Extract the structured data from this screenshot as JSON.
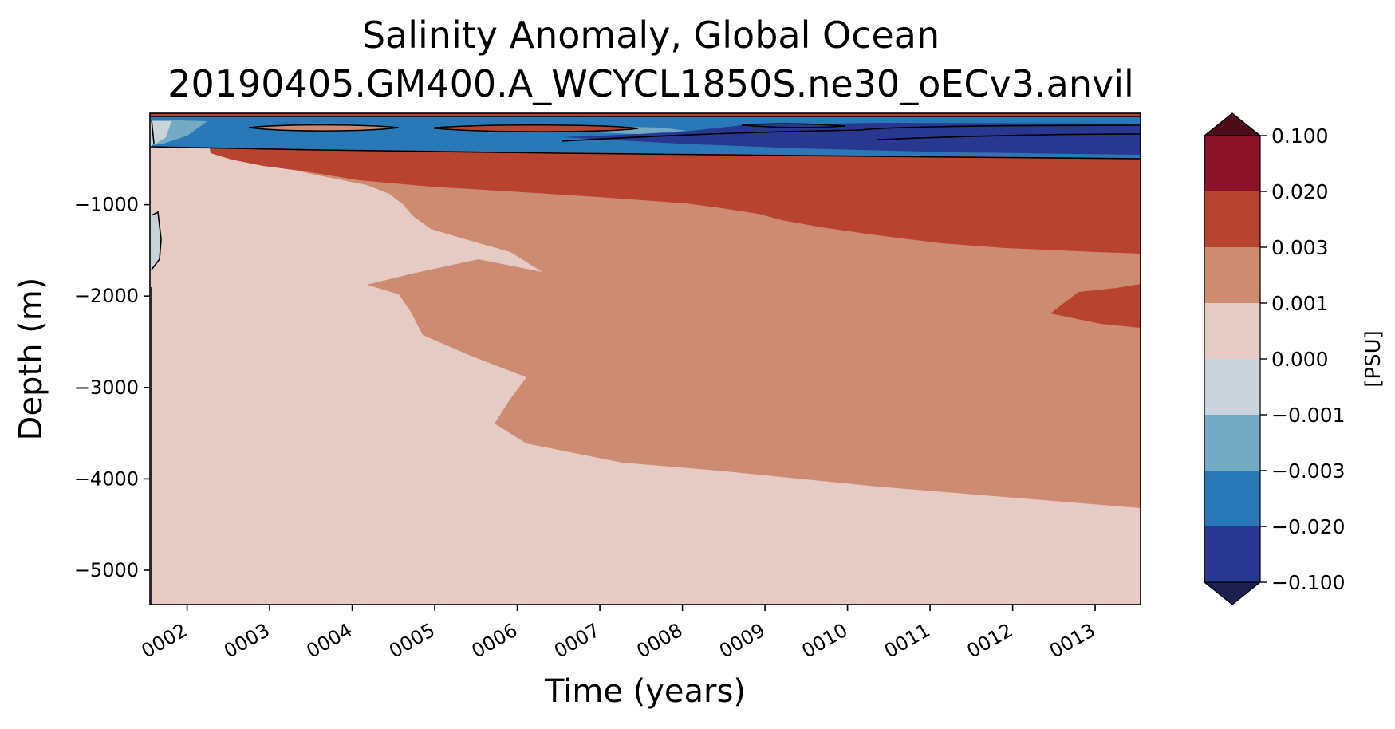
{
  "chart_data": {
    "type": "heatmap",
    "subtype": "filled-contour (Hovmoller)",
    "title": "Salinity Anomaly, Global Ocean",
    "subtitle": "20190405.GM400.A_WCYCL1850S.ne30_oECv3.anvil",
    "xlabel": "Time (years)",
    "ylabel": "Depth (m)",
    "x_ticks": [
      "0002",
      "0003",
      "0004",
      "0005",
      "0006",
      "0007",
      "0008",
      "0009",
      "0010",
      "0011",
      "0012",
      "0013"
    ],
    "xlim": [
      1.55,
      13.55
    ],
    "y_ticks": [
      -1000,
      -2000,
      -3000,
      -4000,
      -5000
    ],
    "y_tick_labels": [
      "−1000",
      "−2000",
      "−3000",
      "−4000",
      "−5000"
    ],
    "ylim": [
      -5375,
      0
    ],
    "grid": false,
    "colorbar": {
      "label": "[PSU]",
      "position": "right",
      "extend": "both",
      "levels": [
        -0.1,
        -0.02,
        -0.003,
        -0.001,
        0.0,
        0.001,
        0.003,
        0.02,
        0.1
      ],
      "tick_labels": [
        "−0.100",
        "−0.020",
        "−0.003",
        "−0.001",
        "0.000",
        "0.001",
        "0.003",
        "0.020",
        "0.100"
      ],
      "colors": [
        "#28378f",
        "#2979b9",
        "#75aac4",
        "#c9d4da",
        "#e5cbc3",
        "#cd8b72",
        "#b84430",
        "#8a1128"
      ],
      "under_color": "#1c1f4f",
      "over_color": "#4c0c18"
    },
    "regions": [
      {
        "level_bin": "0.000 to 0.001",
        "color": "#e5cbc3",
        "description": "background, mid and deep ocean in early years and below ~4000 m"
      },
      {
        "level_bin": "0.001 to 0.003",
        "color": "#cd8b72",
        "x": [
          1.8,
          13.55
        ],
        "depth_range": [
          -4300,
          -450
        ]
      },
      {
        "level_bin": "0.003 to 0.020",
        "color": "#b84430",
        "x": [
          2.3,
          13.55
        ],
        "depth_range": [
          -1550,
          -450
        ]
      },
      {
        "level_bin": "0.003 to 0.020",
        "color": "#b84430",
        "x": [
          12.4,
          13.55
        ],
        "depth_range": [
          -2350,
          -1850
        ]
      },
      {
        "level_bin": "-0.020 to -0.003",
        "color": "#2979b9",
        "x": [
          1.55,
          13.55
        ],
        "depth_range": [
          -380,
          -50
        ]
      },
      {
        "level_bin": "-0.100 to -0.020",
        "color": "#28378f",
        "x": [
          7.0,
          13.55
        ],
        "depth_range": [
          -330,
          -120
        ]
      },
      {
        "level_bin": "-0.001 to 0.000",
        "color": "#c9d4da",
        "x": [
          1.55,
          1.65
        ],
        "depth_range": [
          -1700,
          -1100
        ]
      }
    ]
  }
}
